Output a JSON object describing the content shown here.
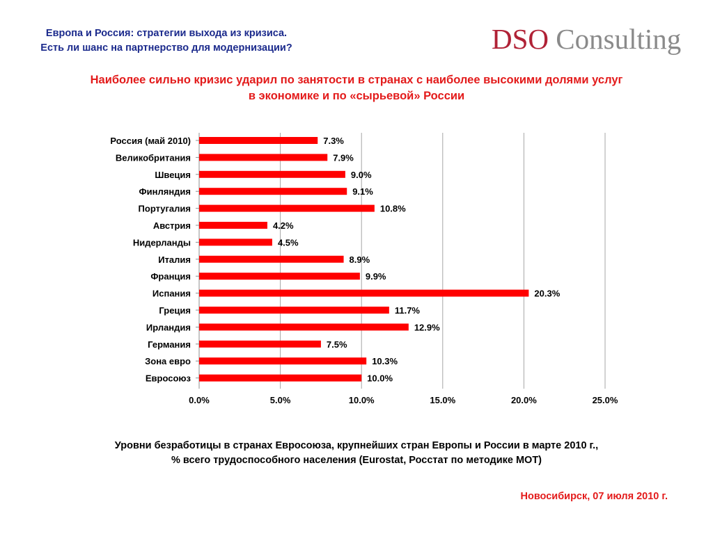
{
  "header": {
    "line1": "Европа и Россия: стратегии выхода из кризиса.",
    "line2": "Есть ли шанс на партнерство для модернизации?"
  },
  "logo": {
    "text_a": "DSO",
    "text_b": " Consulting",
    "color_a": "#b02236",
    "color_b": "#8a8a8a"
  },
  "headline": {
    "line1": "Наиболее сильно кризис ударил по занятости в странах с наиболее высокими долями услуг",
    "line2": "в экономике и по «сырьевой» России"
  },
  "chart_data": {
    "type": "bar",
    "orientation": "horizontal",
    "categories": [
      "Россия (май 2010)",
      "Великобритания",
      "Швеция",
      "Финляндия",
      "Португалия",
      "Австрия",
      "Нидерланды",
      "Италия",
      "Франция",
      "Испания",
      "Греция",
      "Ирландия",
      "Германия",
      "Зона евро",
      "Евросоюз"
    ],
    "values": [
      7.3,
      7.9,
      9.0,
      9.1,
      10.8,
      4.2,
      4.5,
      8.9,
      9.9,
      20.3,
      11.7,
      12.9,
      7.5,
      10.3,
      10.0
    ],
    "value_labels": [
      "7.3%",
      "7.9%",
      "9.0%",
      "9.1%",
      "10.8%",
      "4.2%",
      "4.5%",
      "8.9%",
      "9.9%",
      "20.3%",
      "11.7%",
      "12.9%",
      "7.5%",
      "10.3%",
      "10.0%"
    ],
    "xlim": [
      0,
      25
    ],
    "xticks": [
      0,
      5,
      10,
      15,
      20,
      25
    ],
    "xtick_labels": [
      "0.0%",
      "5.0%",
      "10.0%",
      "15.0%",
      "20.0%",
      "25.0%"
    ],
    "grid": "vertical",
    "bar_color": "#ff0000",
    "grid_color": "#a6a6a6"
  },
  "caption": {
    "line1": "Уровни безработицы в странах Евросоюза, крупнейших стран Европы и России в марте 2010 г.,",
    "line2": "% всего трудоспособного населения (Eurostat, Росстат по методике МОТ)"
  },
  "footer": {
    "text": "Новосибирск, 07 июля 2010 г."
  }
}
